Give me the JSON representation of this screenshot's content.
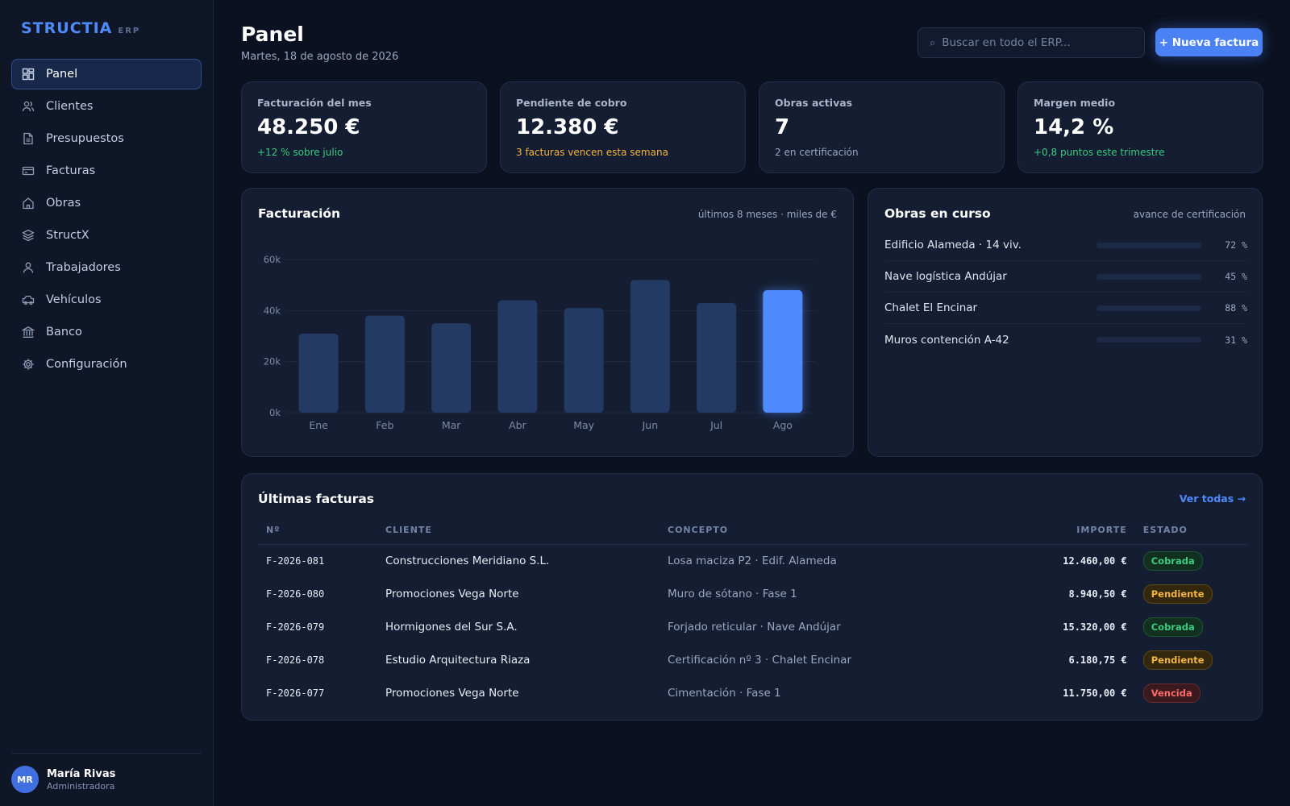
{
  "brand": {
    "name": "STRUCTIA",
    "tag": "ERP"
  },
  "sidebar": {
    "items": [
      {
        "label": "Panel",
        "icon": "dashboard-icon",
        "active": true
      },
      {
        "label": "Clientes",
        "icon": "users-icon"
      },
      {
        "label": "Presupuestos",
        "icon": "document-icon"
      },
      {
        "label": "Facturas",
        "icon": "invoice-icon"
      },
      {
        "label": "Obras",
        "icon": "home-icon"
      },
      {
        "label": "StructX",
        "icon": "layers-icon"
      },
      {
        "label": "Trabajadores",
        "icon": "user-icon"
      },
      {
        "label": "Vehículos",
        "icon": "truck-icon"
      },
      {
        "label": "Banco",
        "icon": "bank-icon"
      },
      {
        "label": "Configuración",
        "icon": "gear-icon"
      }
    ],
    "user": {
      "initials": "MR",
      "name": "María Rivas",
      "role": "Administradora"
    }
  },
  "header": {
    "title": "Panel",
    "date": "Martes, 18 de agosto de 2026",
    "search_placeholder": "Buscar en todo el ERP...",
    "new_button": "+ Nueva factura"
  },
  "kpis": [
    {
      "label": "Facturación del mes",
      "value": "48.250 €",
      "sub": "+12 % sobre julio",
      "tone": "green"
    },
    {
      "label": "Pendiente de cobro",
      "value": "12.380 €",
      "sub": "3 facturas vencen esta semana",
      "tone": "amber"
    },
    {
      "label": "Obras activas",
      "value": "7",
      "sub": "2 en certificación",
      "tone": "muted"
    },
    {
      "label": "Margen medio",
      "value": "14,2 %",
      "sub": "+0,8 puntos este trimestre",
      "tone": "green"
    }
  ],
  "billing": {
    "title": "Facturación",
    "note": "últimos 8 meses · miles de €"
  },
  "chart_data": {
    "type": "bar",
    "title": "Facturación",
    "categories": [
      "Ene",
      "Feb",
      "Mar",
      "Abr",
      "May",
      "Jun",
      "Jul",
      "Ago"
    ],
    "values": [
      31,
      38,
      35,
      44,
      41,
      52,
      43,
      48
    ],
    "highlight_index": 7,
    "ylim": [
      0,
      60
    ],
    "yticks": [
      "0k",
      "20k",
      "40k",
      "60k"
    ],
    "ytick_values": [
      0,
      20,
      40,
      60
    ],
    "grid": true,
    "colors": {
      "bar": "#233a64",
      "highlight": "#4f8bff",
      "grid": "#1e2a42",
      "tick": "#7d8aa5"
    }
  },
  "obras": {
    "title": "Obras en curso",
    "note": "avance de certificación",
    "items": [
      {
        "name": "Edificio Alameda · 14 viv.",
        "pct": "72 %",
        "progress": 0.72
      },
      {
        "name": "Nave logística Andújar",
        "pct": "45 %",
        "progress": 0.45
      },
      {
        "name": "Chalet El Encinar",
        "pct": "88 %",
        "progress": 0.88
      },
      {
        "name": "Muros contención A-42",
        "pct": "31 %",
        "progress": 0.31
      }
    ]
  },
  "invoices": {
    "title": "Últimas facturas",
    "view_all": "Ver todas →",
    "headers": [
      "Nº",
      "CLIENTE",
      "CONCEPTO",
      "IMPORTE",
      "ESTADO"
    ],
    "rows": [
      {
        "num": "F-2026-081",
        "client": "Construcciones Meridiano S.L.",
        "concept": "Losa maciza P2 · Edif. Alameda",
        "amount": "12.460,00 €",
        "status": "Cobrada"
      },
      {
        "num": "F-2026-080",
        "client": "Promociones Vega Norte",
        "concept": "Muro de sótano · Fase 1",
        "amount": "8.940,50 €",
        "status": "Pendiente"
      },
      {
        "num": "F-2026-079",
        "client": "Hormigones del Sur S.A.",
        "concept": "Forjado reticular · Nave Andújar",
        "amount": "15.320,00 €",
        "status": "Cobrada"
      },
      {
        "num": "F-2026-078",
        "client": "Estudio Arquitectura Riaza",
        "concept": "Certificación nº 3 · Chalet Encinar",
        "amount": "6.180,75 €",
        "status": "Pendiente"
      },
      {
        "num": "F-2026-077",
        "client": "Promociones Vega Norte",
        "concept": "Cimentación · Fase 1",
        "amount": "11.750,00 €",
        "status": "Vencida"
      }
    ]
  },
  "colors": {
    "accent": "#4f8bff",
    "positive": "#3ccb7f",
    "warning": "#f5b53d",
    "danger": "#ff6b6b",
    "background": "#0b1120",
    "card": "#141d31"
  }
}
